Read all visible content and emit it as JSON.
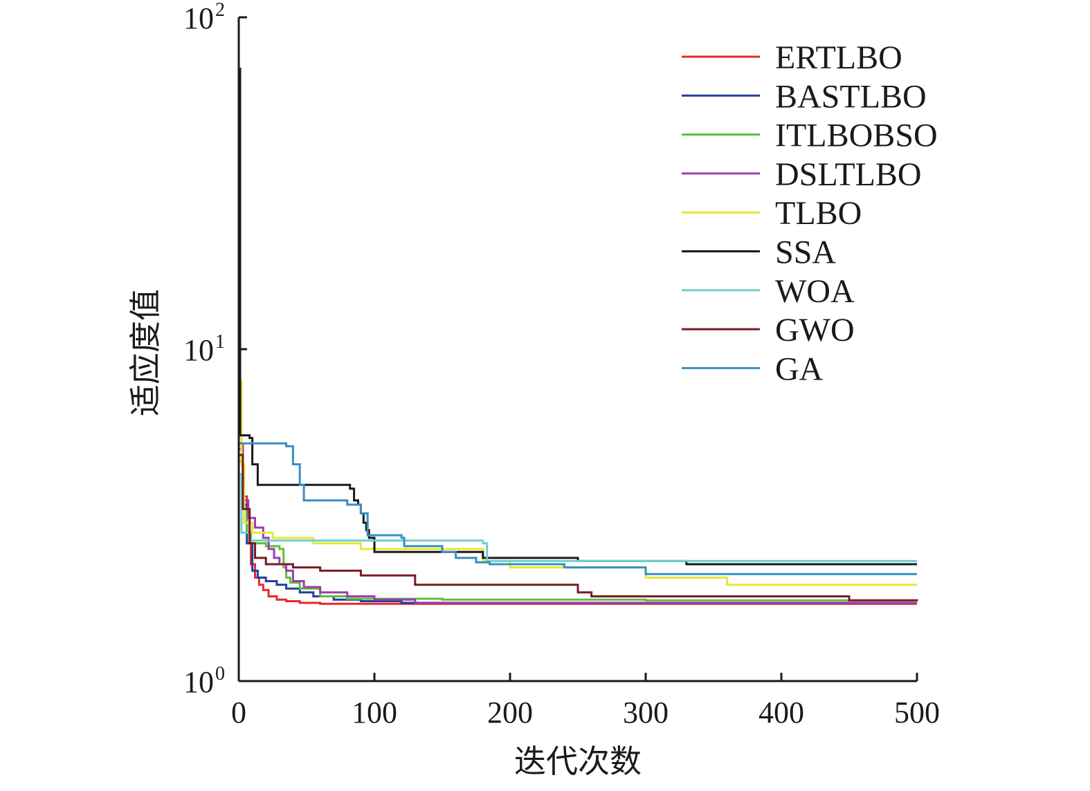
{
  "chart_data": {
    "type": "line",
    "title": "",
    "xlabel": "迭代次数",
    "ylabel": "适应度值",
    "xlim": [
      0,
      500
    ],
    "ylim": [
      1,
      100
    ],
    "yscale": "log",
    "grid": false,
    "legend_position": "top-right",
    "x_ticks": [
      {
        "value": 0,
        "label": "0"
      },
      {
        "value": 100,
        "label": "100"
      },
      {
        "value": 200,
        "label": "200"
      },
      {
        "value": 300,
        "label": "300"
      },
      {
        "value": 400,
        "label": "400"
      },
      {
        "value": 500,
        "label": "500"
      }
    ],
    "y_ticks": [
      {
        "value": 1,
        "base": "10",
        "exp": "0"
      },
      {
        "value": 10,
        "base": "10",
        "exp": "1"
      },
      {
        "value": 100,
        "base": "10",
        "exp": "2"
      }
    ],
    "series": [
      {
        "name": "ERTLBO",
        "color": "#e8262a",
        "step": true,
        "points": [
          [
            0,
            5.2
          ],
          [
            3,
            3.6
          ],
          [
            6,
            2.6
          ],
          [
            9,
            2.25
          ],
          [
            12,
            2.05
          ],
          [
            15,
            1.95
          ],
          [
            18,
            1.88
          ],
          [
            22,
            1.8
          ],
          [
            28,
            1.76
          ],
          [
            35,
            1.74
          ],
          [
            45,
            1.72
          ],
          [
            60,
            1.71
          ],
          [
            100,
            1.71
          ],
          [
            500,
            1.71
          ]
        ]
      },
      {
        "name": "BASTLBO",
        "color": "#1f3f9c",
        "step": true,
        "points": [
          [
            0,
            5.0
          ],
          [
            3,
            3.4
          ],
          [
            6,
            2.6
          ],
          [
            10,
            2.15
          ],
          [
            14,
            2.05
          ],
          [
            20,
            2.0
          ],
          [
            28,
            1.95
          ],
          [
            35,
            1.9
          ],
          [
            45,
            1.85
          ],
          [
            55,
            1.8
          ],
          [
            70,
            1.76
          ],
          [
            90,
            1.74
          ],
          [
            120,
            1.72
          ],
          [
            500,
            1.72
          ]
        ]
      },
      {
        "name": "ITLBOBSO",
        "color": "#5cbf3a",
        "step": true,
        "points": [
          [
            0,
            4.6
          ],
          [
            3,
            3.3
          ],
          [
            6,
            2.8
          ],
          [
            9,
            2.6
          ],
          [
            20,
            2.55
          ],
          [
            30,
            2.5
          ],
          [
            33,
            2.2
          ],
          [
            35,
            2.05
          ],
          [
            38,
            1.98
          ],
          [
            45,
            1.9
          ],
          [
            60,
            1.8
          ],
          [
            80,
            1.77
          ],
          [
            150,
            1.76
          ],
          [
            300,
            1.75
          ],
          [
            500,
            1.74
          ]
        ]
      },
      {
        "name": "DSLTLBO",
        "color": "#9b3db0",
        "step": true,
        "points": [
          [
            0,
            5.0
          ],
          [
            3,
            3.5
          ],
          [
            7,
            3.1
          ],
          [
            12,
            2.9
          ],
          [
            18,
            2.7
          ],
          [
            22,
            2.5
          ],
          [
            26,
            2.35
          ],
          [
            30,
            2.25
          ],
          [
            35,
            2.15
          ],
          [
            40,
            2.0
          ],
          [
            48,
            1.92
          ],
          [
            60,
            1.85
          ],
          [
            80,
            1.8
          ],
          [
            100,
            1.76
          ],
          [
            130,
            1.72
          ],
          [
            500,
            1.72
          ]
        ]
      },
      {
        "name": "TLBO",
        "color": "#e6e637",
        "step": true,
        "points": [
          [
            0,
            70
          ],
          [
            1,
            8
          ],
          [
            2,
            4.5
          ],
          [
            4,
            3.0
          ],
          [
            10,
            2.8
          ],
          [
            25,
            2.7
          ],
          [
            55,
            2.6
          ],
          [
            90,
            2.5
          ],
          [
            180,
            2.3
          ],
          [
            200,
            2.2
          ],
          [
            300,
            2.05
          ],
          [
            360,
            1.95
          ],
          [
            500,
            1.95
          ]
        ]
      },
      {
        "name": "SSA",
        "color": "#1a1a1a",
        "step": true,
        "points": [
          [
            0,
            70
          ],
          [
            1,
            5.5
          ],
          [
            8,
            5.4
          ],
          [
            10,
            4.5
          ],
          [
            14,
            3.9
          ],
          [
            82,
            3.8
          ],
          [
            85,
            3.5
          ],
          [
            88,
            3.4
          ],
          [
            90,
            3.2
          ],
          [
            92,
            3.0
          ],
          [
            94,
            2.85
          ],
          [
            96,
            2.7
          ],
          [
            100,
            2.45
          ],
          [
            180,
            2.35
          ],
          [
            250,
            2.3
          ],
          [
            330,
            2.25
          ],
          [
            500,
            2.25
          ]
        ]
      },
      {
        "name": "WOA",
        "color": "#6fcfcf",
        "step": true,
        "points": [
          [
            0,
            4.2
          ],
          [
            2,
            2.8
          ],
          [
            8,
            2.65
          ],
          [
            180,
            2.6
          ],
          [
            183,
            2.3
          ],
          [
            500,
            2.3
          ]
        ]
      },
      {
        "name": "GWO",
        "color": "#7a1a24",
        "step": true,
        "points": [
          [
            0,
            4.8
          ],
          [
            3,
            3.3
          ],
          [
            8,
            2.6
          ],
          [
            12,
            2.35
          ],
          [
            20,
            2.25
          ],
          [
            40,
            2.2
          ],
          [
            60,
            2.15
          ],
          [
            90,
            2.08
          ],
          [
            130,
            1.95
          ],
          [
            250,
            1.85
          ],
          [
            260,
            1.8
          ],
          [
            450,
            1.75
          ],
          [
            500,
            1.74
          ]
        ]
      },
      {
        "name": "GA",
        "color": "#3a8cc4",
        "step": true,
        "points": [
          [
            0,
            5.2
          ],
          [
            35,
            5.1
          ],
          [
            40,
            4.5
          ],
          [
            45,
            3.9
          ],
          [
            48,
            3.5
          ],
          [
            80,
            3.4
          ],
          [
            90,
            3.2
          ],
          [
            95,
            2.75
          ],
          [
            120,
            2.7
          ],
          [
            122,
            2.55
          ],
          [
            150,
            2.45
          ],
          [
            160,
            2.35
          ],
          [
            175,
            2.28
          ],
          [
            185,
            2.25
          ],
          [
            240,
            2.2
          ],
          [
            300,
            2.1
          ],
          [
            500,
            2.1
          ]
        ]
      }
    ]
  }
}
